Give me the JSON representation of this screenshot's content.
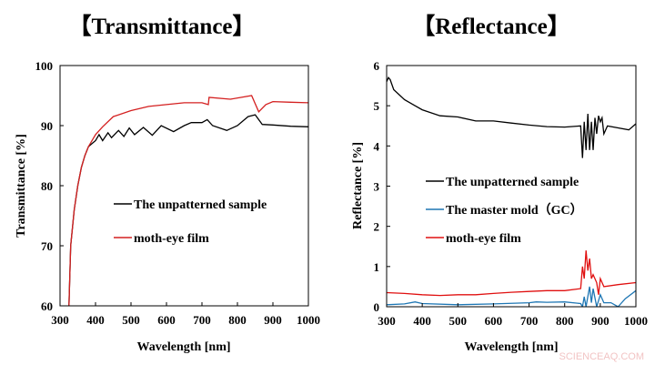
{
  "watermark": "SCIENCEAQ.COM",
  "chart_data": [
    {
      "type": "line",
      "title": "【Transmittance】",
      "xlabel": "Wavelength [nm]",
      "ylabel": "Transmittance [%]",
      "xlim": [
        300,
        1000
      ],
      "ylim": [
        60,
        100
      ],
      "xticks": [
        300,
        400,
        500,
        600,
        700,
        800,
        900,
        1000
      ],
      "yticks": [
        60,
        70,
        80,
        90,
        100
      ],
      "grid": false,
      "legend": "center-right",
      "series": [
        {
          "name": "The unpatterned sample",
          "color": "#000000",
          "x": [
            325,
            330,
            340,
            350,
            360,
            370,
            380,
            390,
            400,
            410,
            420,
            435,
            445,
            465,
            480,
            495,
            510,
            535,
            560,
            585,
            620,
            650,
            670,
            700,
            715,
            730,
            770,
            800,
            830,
            850,
            870,
            900,
            950,
            1000
          ],
          "y": [
            60,
            70,
            76,
            80,
            83,
            85,
            86.5,
            87,
            87.5,
            88.5,
            87.5,
            88.8,
            88,
            89.2,
            88.2,
            89.6,
            88.5,
            89.7,
            88.4,
            90,
            89,
            90,
            90.5,
            90.5,
            91,
            90,
            89.2,
            90,
            91.5,
            91.8,
            90.2,
            90.1,
            89.9,
            89.8
          ]
        },
        {
          "name": "moth-eye film",
          "color": "#d42020",
          "x": [
            325,
            330,
            340,
            350,
            360,
            370,
            380,
            400,
            420,
            450,
            500,
            550,
            600,
            650,
            700,
            718,
            720,
            780,
            840,
            860,
            880,
            900,
            950,
            1000
          ],
          "y": [
            60,
            70,
            76,
            80,
            83,
            85,
            86.5,
            88.5,
            89.8,
            91.5,
            92.5,
            93.2,
            93.5,
            93.8,
            93.8,
            93.5,
            94.7,
            94.4,
            95,
            92.3,
            93.5,
            94,
            93.9,
            93.8
          ]
        }
      ]
    },
    {
      "type": "line",
      "title": "【Reflectance】",
      "xlabel": "Wavelength [nm]",
      "ylabel": "Reflectance   [%]",
      "xlim": [
        300,
        1000
      ],
      "ylim": [
        0,
        6
      ],
      "xticks": [
        300,
        400,
        500,
        600,
        700,
        800,
        900,
        1000
      ],
      "yticks": [
        0,
        1,
        2,
        3,
        4,
        5,
        6
      ],
      "grid": false,
      "legend": "center",
      "series": [
        {
          "name": "The unpatterned sample",
          "color": "#000000",
          "x": [
            300,
            305,
            310,
            320,
            350,
            380,
            400,
            450,
            500,
            550,
            600,
            650,
            700,
            750,
            800,
            845,
            850,
            855,
            860,
            865,
            870,
            875,
            880,
            885,
            890,
            895,
            900,
            905,
            910,
            920,
            950,
            980,
            1000
          ],
          "y": [
            5.6,
            5.7,
            5.65,
            5.4,
            5.15,
            5.0,
            4.9,
            4.75,
            4.72,
            4.62,
            4.62,
            4.57,
            4.52,
            4.48,
            4.47,
            4.5,
            3.7,
            4.6,
            3.9,
            4.8,
            3.9,
            4.6,
            3.9,
            4.7,
            4.3,
            4.75,
            4.6,
            4.7,
            4.3,
            4.5,
            4.45,
            4.4,
            4.55
          ]
        },
        {
          "name": "The master mold（GC）",
          "color": "#1f77b4",
          "x": [
            300,
            350,
            380,
            400,
            500,
            600,
            700,
            720,
            750,
            800,
            845,
            850,
            855,
            860,
            870,
            875,
            880,
            890,
            900,
            910,
            930,
            950,
            970,
            1000
          ],
          "y": [
            0.05,
            0.07,
            0.12,
            0.08,
            0.05,
            0.07,
            0.1,
            0.12,
            0.11,
            0.12,
            0.08,
            0.0,
            0.25,
            0.0,
            0.5,
            0.1,
            0.45,
            0.0,
            0.3,
            0.1,
            0.1,
            0.0,
            0.2,
            0.4
          ]
        },
        {
          "name": "moth-eye film",
          "color": "#e01010",
          "x": [
            300,
            350,
            400,
            450,
            500,
            550,
            600,
            650,
            700,
            750,
            800,
            845,
            850,
            855,
            860,
            865,
            870,
            875,
            880,
            890,
            895,
            900,
            910,
            950,
            1000
          ],
          "y": [
            0.35,
            0.33,
            0.3,
            0.28,
            0.3,
            0.3,
            0.33,
            0.36,
            0.38,
            0.4,
            0.4,
            0.45,
            1.0,
            0.7,
            1.4,
            0.9,
            1.2,
            0.7,
            0.8,
            0.6,
            0.3,
            0.7,
            0.5,
            0.55,
            0.6
          ]
        }
      ]
    }
  ]
}
